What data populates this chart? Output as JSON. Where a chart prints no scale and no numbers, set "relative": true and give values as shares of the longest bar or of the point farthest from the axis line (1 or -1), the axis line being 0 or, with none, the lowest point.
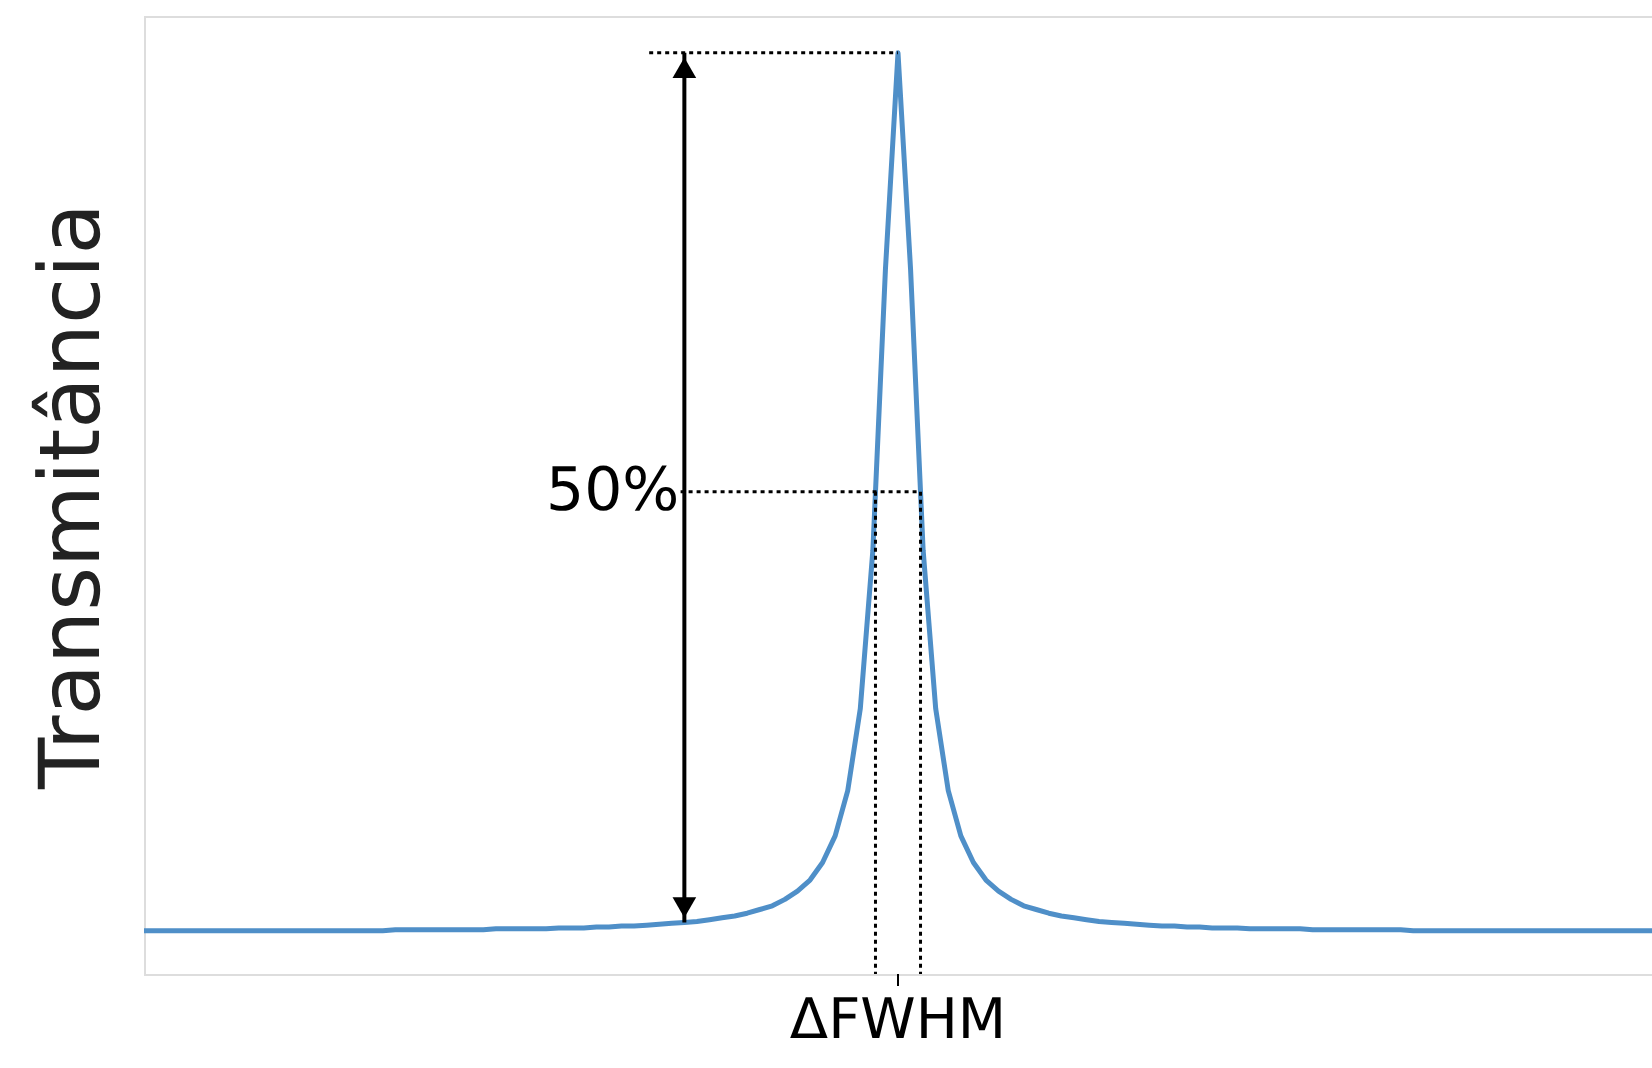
{
  "chart_data": {
    "type": "line",
    "relative": true,
    "ylabel": "Transmitância",
    "categories": [
      null,
      null,
      null,
      null,
      null,
      null,
      null,
      null,
      null,
      null,
      null,
      null,
      null,
      null,
      null,
      null,
      null,
      null,
      null,
      null,
      null,
      null,
      null,
      null,
      null,
      null,
      null,
      null,
      null,
      null,
      null,
      null,
      null,
      null,
      null,
      null,
      null,
      null,
      null,
      null,
      null,
      null,
      null,
      null,
      null,
      null,
      null,
      null,
      null,
      null,
      null,
      null,
      null,
      null,
      null,
      null,
      null,
      null,
      null,
      null,
      null,
      null,
      null,
      null,
      null,
      null,
      null,
      null,
      null,
      null,
      null,
      null,
      null,
      null,
      null,
      null,
      null,
      null,
      null,
      null,
      null,
      null,
      null,
      null,
      null,
      null,
      null,
      null,
      null,
      null,
      null,
      null,
      null,
      null,
      null,
      null,
      null,
      null,
      null,
      null,
      null,
      null,
      null,
      null,
      null,
      null,
      null,
      null,
      null,
      null,
      null,
      null,
      null,
      null,
      null,
      null,
      null,
      null,
      null,
      null,
      null
    ],
    "series": [
      {
        "color": "#4f8fc8",
        "values": [
          0.047,
          0.047,
          0.047,
          0.047,
          0.047,
          0.047,
          0.047,
          0.047,
          0.047,
          0.047,
          0.047,
          0.047,
          0.047,
          0.047,
          0.047,
          0.047,
          0.047,
          0.047,
          0.047,
          0.047,
          0.048,
          0.048,
          0.048,
          0.048,
          0.048,
          0.048,
          0.048,
          0.048,
          0.049,
          0.049,
          0.049,
          0.049,
          0.049,
          0.05,
          0.05,
          0.05,
          0.051,
          0.051,
          0.052,
          0.052,
          0.053,
          0.054,
          0.055,
          0.056,
          0.057,
          0.059,
          0.061,
          0.063,
          0.066,
          0.07,
          0.074,
          0.081,
          0.09,
          0.102,
          0.121,
          0.15,
          0.199,
          0.288,
          0.46,
          0.765,
          1.0,
          0.765,
          0.46,
          0.288,
          0.199,
          0.15,
          0.121,
          0.102,
          0.09,
          0.081,
          0.074,
          0.07,
          0.066,
          0.063,
          0.061,
          0.059,
          0.057,
          0.056,
          0.055,
          0.054,
          0.053,
          0.052,
          0.052,
          0.051,
          0.051,
          0.05,
          0.05,
          0.05,
          0.049,
          0.049,
          0.049,
          0.049,
          0.049,
          0.048,
          0.048,
          0.048,
          0.048,
          0.048,
          0.048,
          0.048,
          0.048,
          0.047,
          0.047,
          0.047,
          0.047,
          0.047,
          0.047,
          0.047,
          0.047,
          0.047,
          0.047,
          0.047,
          0.047,
          0.047,
          0.047,
          0.047,
          0.047,
          0.047,
          0.047,
          0.047,
          0.047
        ]
      }
    ],
    "annotations": [
      "50%",
      "ΔFWHM"
    ]
  }
}
